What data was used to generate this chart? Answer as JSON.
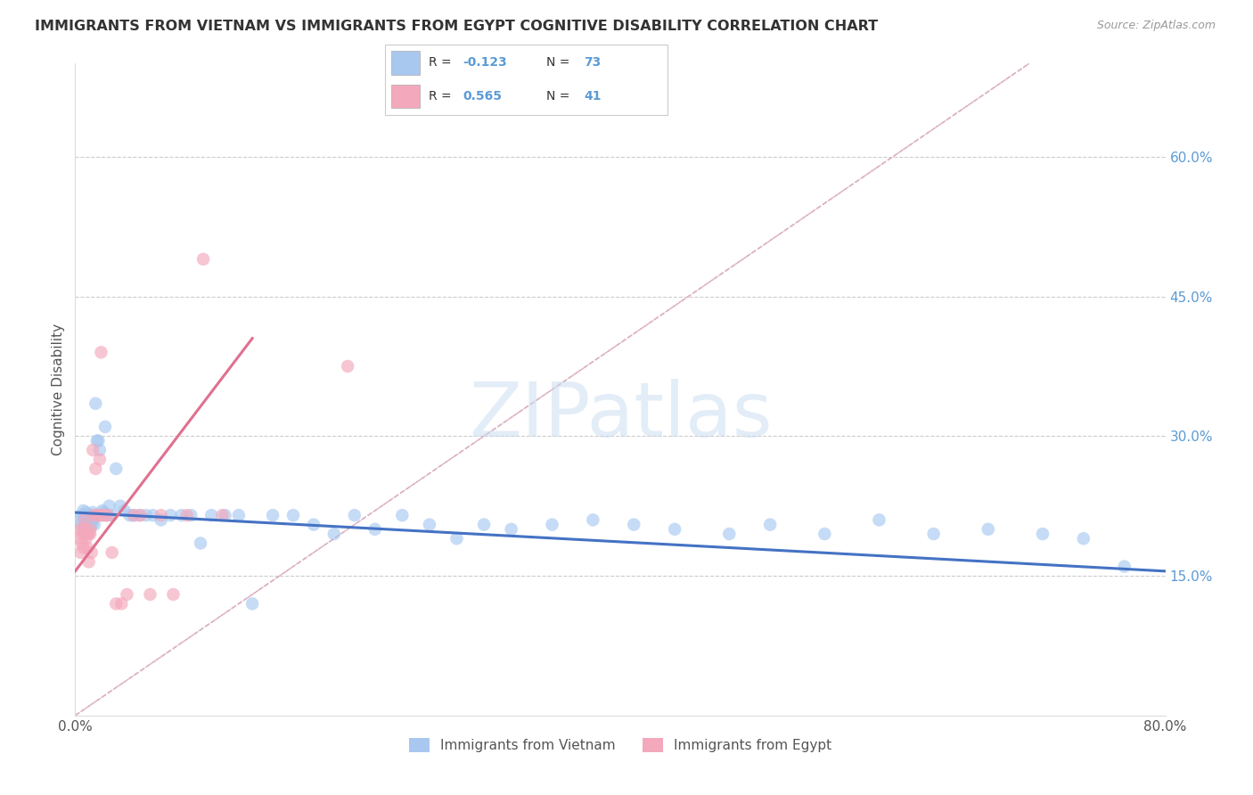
{
  "title": "IMMIGRANTS FROM VIETNAM VS IMMIGRANTS FROM EGYPT COGNITIVE DISABILITY CORRELATION CHART",
  "source": "Source: ZipAtlas.com",
  "ylabel": "Cognitive Disability",
  "y_ticks": [
    0.15,
    0.3,
    0.45,
    0.6
  ],
  "y_tick_labels": [
    "15.0%",
    "30.0%",
    "45.0%",
    "60.0%"
  ],
  "xlim": [
    0.0,
    0.8
  ],
  "ylim": [
    0.0,
    0.7
  ],
  "legend1_label": "Immigrants from Vietnam",
  "legend2_label": "Immigrants from Egypt",
  "r_vietnam": -0.123,
  "n_vietnam": 73,
  "r_egypt": 0.565,
  "n_egypt": 41,
  "color_vietnam": "#A8C8F0",
  "color_egypt": "#F4A8BC",
  "color_trend_vietnam": "#4472C4",
  "color_trend_egypt": "#E07090",
  "vietnam_x": [
    0.003,
    0.004,
    0.005,
    0.006,
    0.006,
    0.007,
    0.007,
    0.008,
    0.008,
    0.009,
    0.009,
    0.01,
    0.01,
    0.011,
    0.011,
    0.012,
    0.012,
    0.013,
    0.013,
    0.014,
    0.014,
    0.015,
    0.016,
    0.017,
    0.018,
    0.019,
    0.02,
    0.021,
    0.022,
    0.023,
    0.025,
    0.027,
    0.03,
    0.033,
    0.036,
    0.04,
    0.043,
    0.047,
    0.052,
    0.057,
    0.063,
    0.07,
    0.078,
    0.085,
    0.092,
    0.1,
    0.11,
    0.12,
    0.13,
    0.145,
    0.16,
    0.175,
    0.19,
    0.205,
    0.22,
    0.24,
    0.26,
    0.28,
    0.3,
    0.32,
    0.35,
    0.38,
    0.41,
    0.44,
    0.48,
    0.51,
    0.55,
    0.59,
    0.63,
    0.67,
    0.71,
    0.74,
    0.77
  ],
  "vietnam_y": [
    0.21,
    0.205,
    0.215,
    0.2,
    0.22,
    0.198,
    0.212,
    0.206,
    0.218,
    0.2,
    0.215,
    0.21,
    0.205,
    0.215,
    0.208,
    0.212,
    0.205,
    0.218,
    0.21,
    0.215,
    0.205,
    0.335,
    0.295,
    0.295,
    0.285,
    0.215,
    0.22,
    0.218,
    0.31,
    0.215,
    0.225,
    0.215,
    0.265,
    0.225,
    0.22,
    0.215,
    0.215,
    0.215,
    0.215,
    0.215,
    0.21,
    0.215,
    0.215,
    0.215,
    0.185,
    0.215,
    0.215,
    0.215,
    0.12,
    0.215,
    0.215,
    0.205,
    0.195,
    0.215,
    0.2,
    0.215,
    0.205,
    0.19,
    0.205,
    0.2,
    0.205,
    0.21,
    0.205,
    0.2,
    0.195,
    0.205,
    0.195,
    0.21,
    0.195,
    0.2,
    0.195,
    0.19,
    0.16
  ],
  "egypt_x": [
    0.003,
    0.004,
    0.004,
    0.005,
    0.005,
    0.006,
    0.006,
    0.007,
    0.007,
    0.008,
    0.008,
    0.009,
    0.009,
    0.01,
    0.01,
    0.011,
    0.011,
    0.012,
    0.013,
    0.014,
    0.015,
    0.016,
    0.017,
    0.018,
    0.019,
    0.02,
    0.022,
    0.024,
    0.027,
    0.03,
    0.034,
    0.038,
    0.043,
    0.048,
    0.055,
    0.063,
    0.072,
    0.082,
    0.094,
    0.108,
    0.2
  ],
  "egypt_y": [
    0.19,
    0.175,
    0.2,
    0.185,
    0.195,
    0.2,
    0.18,
    0.195,
    0.21,
    0.19,
    0.2,
    0.195,
    0.18,
    0.195,
    0.165,
    0.195,
    0.2,
    0.175,
    0.285,
    0.215,
    0.265,
    0.215,
    0.215,
    0.275,
    0.39,
    0.215,
    0.215,
    0.215,
    0.175,
    0.12,
    0.12,
    0.13,
    0.215,
    0.215,
    0.13,
    0.215,
    0.13,
    0.215,
    0.49,
    0.215,
    0.375
  ],
  "viet_trend_x": [
    0.0,
    0.8
  ],
  "viet_trend_y": [
    0.218,
    0.155
  ],
  "egypt_trend_x": [
    0.0,
    0.13
  ],
  "egypt_trend_y": [
    0.155,
    0.405
  ]
}
